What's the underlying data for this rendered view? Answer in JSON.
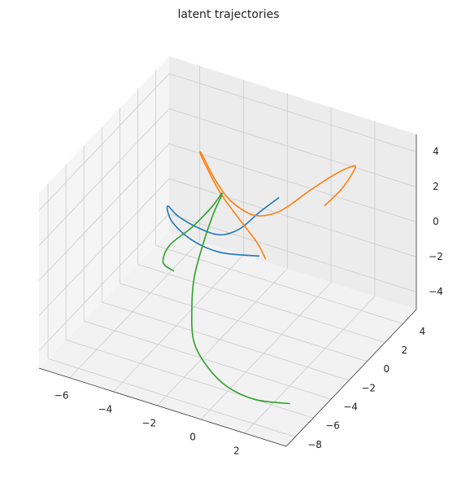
{
  "chart_data": {
    "type": "line3d",
    "title": "latent trajectories",
    "xlim": [
      -7.4,
      3.9
    ],
    "ylim": [
      -9,
      5.5
    ],
    "zlim": [
      -5,
      5
    ],
    "xticks": [
      {
        "value": -6,
        "label": "−6"
      },
      {
        "value": -4,
        "label": "−4"
      },
      {
        "value": -2,
        "label": "−2"
      },
      0,
      2
    ],
    "yticks": [
      {
        "value": -8,
        "label": "−8"
      },
      {
        "value": -6,
        "label": "−6"
      },
      {
        "value": -4,
        "label": "−4"
      },
      {
        "value": -2,
        "label": "−2"
      },
      0,
      2,
      4
    ],
    "zticks": [
      {
        "value": -4,
        "label": "−4"
      },
      {
        "value": -2,
        "label": "−2"
      },
      0,
      2,
      4
    ],
    "grid": true,
    "series": [
      {
        "color": "#1f77b4",
        "x": [
          -0.3,
          -2.1,
          -3.4,
          -4.3,
          -4.5,
          -4.0,
          -3.05,
          -2.1,
          -1.2,
          -0.3,
          0.6
        ],
        "y": [
          -1.75,
          -1.75,
          -1.75,
          -1.75,
          -1.75,
          -1.75,
          -1.75,
          -1.75,
          -1.75,
          -1.75,
          -1.75
        ],
        "z": [
          0.3,
          -0.2,
          0.0,
          0.7,
          1.5,
          1.1,
          0.8,
          0.8,
          1.5,
          2.8,
          4.0
        ]
      },
      {
        "color": "#ff7f0e",
        "x": [
          0.6,
          1.4,
          2.0,
          1.8,
          1.0,
          0.8,
          -0.2,
          -0.9,
          -1.8,
          -2.8,
          -3.5,
          -4.1,
          -4.2,
          -4.0,
          -3.3,
          -2.4,
          -1.6,
          -1.2
        ],
        "y": [
          3.3,
          3.3,
          3.3,
          3.3,
          3.3,
          1.15,
          1.15,
          1.15,
          1.15,
          1.15,
          1.15,
          1.15,
          1.15,
          1.15,
          1.15,
          1.15,
          1.15,
          1.15
        ],
        "z": [
          0.8,
          2.1,
          3.5,
          3.5,
          2.7,
          2.9,
          1.6,
          0.9,
          0.5,
          0.9,
          1.8,
          3.0,
          3.1,
          2.6,
          1.2,
          0.0,
          -1.0,
          -1.8
        ]
      },
      {
        "color": "#2ca02c",
        "x": [
          -4.2,
          -4.7,
          -4.4,
          -3.4,
          -2.5,
          -2.0,
          -2.1,
          -2.3,
          -2.4,
          -2.2,
          -1.8,
          -0.9,
          0.3,
          1.9,
          3.6
        ],
        "y": [
          -1.75,
          -1.75,
          -1.75,
          -1.75,
          -1.75,
          -1.75,
          -2.5,
          -3.2,
          -3.9,
          -4.65,
          -5.4,
          -6.1,
          -6.8,
          -7.55,
          -7.85
        ],
        "z": [
          -2.1,
          -1.8,
          -0.7,
          0.7,
          2.2,
          3.2,
          2.4,
          0.9,
          -0.6,
          -1.9,
          -3.2,
          -3.9,
          -4.2,
          -3.9,
          -3.3
        ]
      }
    ]
  }
}
